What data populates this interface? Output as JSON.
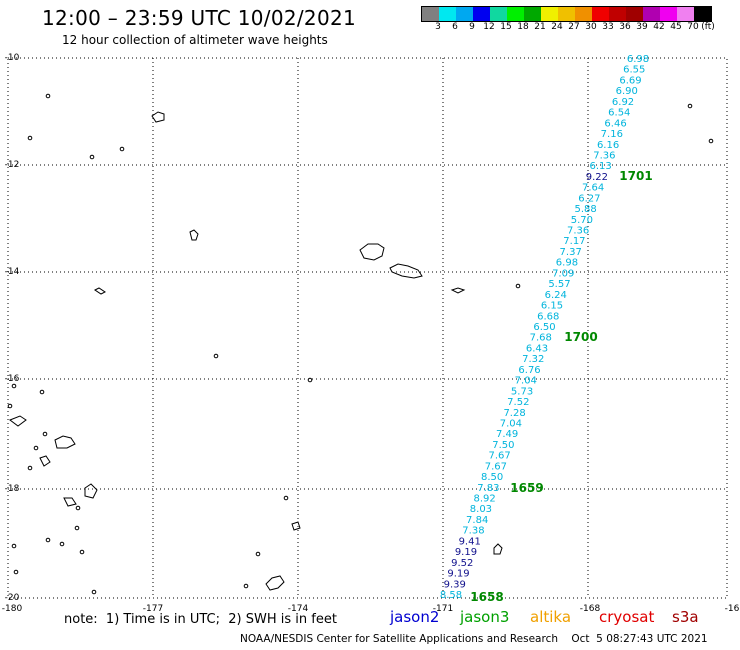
{
  "header": {
    "title": "12:00 – 23:59 UTC 10/02/2021",
    "subtitle": "12 hour collection of altimeter wave heights"
  },
  "color_scale": {
    "colors": [
      "#808080",
      "#00e8f0",
      "#00a8f0",
      "#0000f0",
      "#10d8a0",
      "#00f000",
      "#00a800",
      "#f0f000",
      "#f0c000",
      "#f09000",
      "#f00000",
      "#c00000",
      "#a00000",
      "#b000b0",
      "#f000f0",
      "#f080f0",
      "#000000"
    ],
    "labels": [
      "3",
      "6",
      "9",
      "12",
      "15",
      "18",
      "21",
      "24",
      "27",
      "30",
      "33",
      "36",
      "39",
      "42",
      "45",
      "70",
      "(ft)"
    ]
  },
  "axes": {
    "lon_labels": [
      "-180",
      "-177",
      "-174",
      "-171",
      "-168",
      "-16"
    ],
    "lat_labels": [
      "-10",
      "-12",
      "-14",
      "-16",
      "-18",
      "-20"
    ]
  },
  "track": {
    "values": [
      "6.98",
      "6.55",
      "6.69",
      "6.90",
      "6.92",
      "6.54",
      "6.46",
      "7.16",
      "6.16",
      "7.36",
      "6.13",
      "9.22",
      "7.64",
      "6.27",
      "5.88",
      "5.70",
      "7.36",
      "7.17",
      "7.37",
      "6.98",
      "7.09",
      "5.57",
      "6.24",
      "6.15",
      "6.68",
      "6.50",
      "7.68",
      "6.43",
      "7.32",
      "6.76",
      "7.04",
      "5.73",
      "7.52",
      "7.28",
      "7.04",
      "7.49",
      "7.50",
      "7.67",
      "7.67",
      "8.50",
      "7.83",
      "8.92",
      "8.03",
      "7.84",
      "7.38",
      "9.41",
      "9.19",
      "9.52",
      "9.19",
      "9.39",
      "8.58"
    ],
    "colors": [
      "cyan",
      "cyan",
      "cyan",
      "cyan",
      "cyan",
      "cyan",
      "cyan",
      "cyan",
      "cyan",
      "cyan",
      "cyan",
      "navy",
      "cyan",
      "cyan",
      "cyan",
      "cyan",
      "cyan",
      "cyan",
      "cyan",
      "cyan",
      "cyan",
      "cyan",
      "cyan",
      "cyan",
      "cyan",
      "cyan",
      "cyan",
      "cyan",
      "cyan",
      "cyan",
      "cyan",
      "cyan",
      "cyan",
      "cyan",
      "cyan",
      "cyan",
      "cyan",
      "cyan",
      "cyan",
      "cyan",
      "cyan",
      "cyan",
      "cyan",
      "cyan",
      "cyan",
      "navy",
      "navy",
      "navy",
      "navy",
      "navy",
      "cyan"
    ],
    "time_labels": [
      "1701",
      "1700",
      "1659",
      "1658"
    ]
  },
  "footer": {
    "note": "note:  1) Time is in UTC;  2) SWH is in feet",
    "satellites": [
      {
        "name": "jason2",
        "color": "#0000d0"
      },
      {
        "name": "jason3",
        "color": "#00a000"
      },
      {
        "name": "altika",
        "color": "#f0a000"
      },
      {
        "name": "cryosat",
        "color": "#e00000"
      },
      {
        "name": "s3a",
        "color": "#a00000"
      }
    ],
    "credit": "NOAA/NESDIS Center for Satellite Applications and Research    Oct  5 08:27:43 UTC 2021"
  }
}
